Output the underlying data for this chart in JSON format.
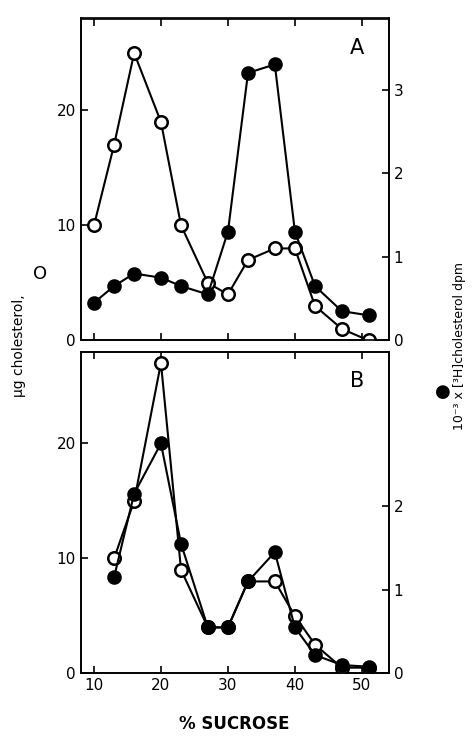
{
  "panel_A": {
    "open_x": [
      10,
      13,
      16,
      20,
      23,
      27,
      30,
      33,
      37,
      40,
      43,
      47,
      51
    ],
    "open_y": [
      10,
      17,
      25,
      19,
      10,
      5,
      4,
      7,
      8,
      8,
      3,
      1,
      0
    ],
    "filled_x": [
      10,
      13,
      16,
      20,
      23,
      27,
      30,
      33,
      37,
      40,
      43,
      47,
      51
    ],
    "filled_y": [
      0.45,
      0.65,
      0.8,
      0.75,
      0.65,
      0.55,
      1.3,
      3.2,
      3.3,
      1.3,
      0.65,
      0.35,
      0.3
    ],
    "label": "A",
    "ylim_left": [
      0,
      28
    ],
    "ylim_right": [
      0,
      3.85
    ],
    "yticks_left": [
      0,
      10,
      20
    ],
    "yticks_right": [
      0,
      1,
      2,
      3
    ]
  },
  "panel_B": {
    "open_x": [
      13,
      16,
      20,
      23,
      27,
      30,
      33,
      37,
      40,
      43,
      47,
      51
    ],
    "open_y": [
      10,
      15,
      27,
      9,
      4,
      4,
      8,
      8,
      5,
      2.5,
      0.5,
      0.5
    ],
    "filled_x": [
      13,
      16,
      20,
      23,
      27,
      30,
      33,
      37,
      40,
      43,
      47,
      51
    ],
    "filled_y": [
      1.15,
      2.15,
      2.75,
      1.55,
      0.55,
      0.55,
      1.1,
      1.45,
      0.55,
      0.22,
      0.1,
      0.08
    ],
    "label": "B",
    "ylim_left": [
      0,
      28
    ],
    "ylim_right": [
      0,
      3.85
    ],
    "yticks_left": [
      0,
      10,
      20
    ],
    "yticks_right": [
      0,
      1,
      2
    ]
  },
  "xlabel": "% SUCROSE",
  "ylabel_left": "µg cholesterol,",
  "ylabel_right_top": "10⁻³ x [³H]cholesterol dpm",
  "xlim": [
    8,
    54
  ],
  "xticks": [
    10,
    20,
    30,
    40,
    50
  ],
  "marker_size": 9,
  "line_width": 1.5,
  "legend_open_label": "O",
  "legend_filled_label": "●"
}
